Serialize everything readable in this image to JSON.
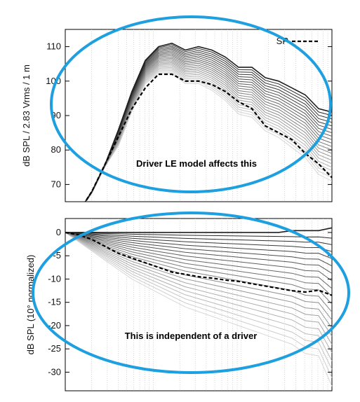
{
  "chart_data": [
    {
      "type": "line",
      "ylabel": "dB SPL / 2.83 Vrms / 1 m",
      "ylim": [
        65,
        115
      ],
      "yticks": [
        70,
        80,
        90,
        100,
        110
      ],
      "xscale": "log",
      "grid": true,
      "legend": {
        "position": "top-right",
        "entries": [
          {
            "name": "SP",
            "style": "dashed",
            "color": "#000000"
          }
        ]
      },
      "annotation": "Driver LE model affects this",
      "x": [
        0.0,
        0.05,
        0.1,
        0.15,
        0.2,
        0.25,
        0.3,
        0.35,
        0.4,
        0.45,
        0.5,
        0.55,
        0.6,
        0.65,
        0.7,
        0.75,
        0.8,
        0.85,
        0.9,
        0.95,
        1.0
      ],
      "reference_curve": [
        58,
        62,
        68,
        76,
        86,
        97,
        106,
        110,
        111,
        109,
        110,
        109,
        107,
        104,
        104,
        101,
        100,
        98,
        96,
        92,
        91
      ],
      "series": [
        {
          "name": "SP",
          "style": "dashed",
          "values": [
            58,
            62,
            68,
            76,
            84,
            92,
            98,
            102,
            102,
            100,
            100,
            99,
            97,
            94,
            92,
            87,
            85,
            83,
            79,
            76,
            72
          ]
        }
      ],
      "family_drop_db": [
        0,
        1,
        2,
        3,
        4,
        5,
        6,
        7,
        8,
        9,
        10,
        11,
        12,
        13,
        14,
        15,
        16,
        17,
        18,
        19,
        20
      ]
    },
    {
      "type": "line",
      "ylabel": "dB SPL (10° normalized)",
      "ylim": [
        -34,
        3
      ],
      "yticks": [
        0,
        -5,
        -10,
        -15,
        -20,
        -25,
        -30
      ],
      "xscale": "log",
      "grid": true,
      "annotation": "This is independent of a driver",
      "x": [
        0.0,
        0.05,
        0.1,
        0.15,
        0.2,
        0.25,
        0.3,
        0.35,
        0.4,
        0.45,
        0.5,
        0.55,
        0.6,
        0.65,
        0.7,
        0.75,
        0.8,
        0.85,
        0.9,
        0.95,
        1.0
      ],
      "series": [
        {
          "name": "SP",
          "style": "dashed",
          "values": [
            0,
            -0.5,
            -1.5,
            -3,
            -4.5,
            -5.5,
            -6.5,
            -7.5,
            -8.5,
            -9,
            -9.5,
            -9.8,
            -10.2,
            -10.5,
            -11,
            -11.5,
            -12,
            -12.5,
            -12.8,
            -12.4,
            -13.5
          ]
        }
      ],
      "family_bottom_curve": [
        0,
        -2,
        -4,
        -6,
        -8,
        -10,
        -11.5,
        -13,
        -14.5,
        -16,
        -17,
        -18,
        -19,
        -20,
        -21,
        -22,
        -23,
        -24,
        -26,
        -28,
        -33
      ],
      "family_count": 21
    }
  ]
}
